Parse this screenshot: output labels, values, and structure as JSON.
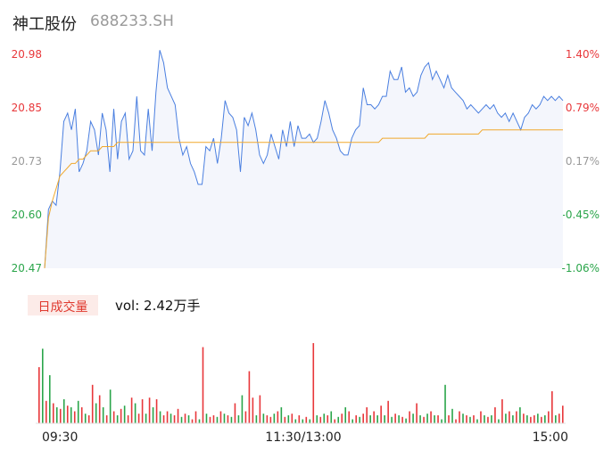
{
  "header": {
    "name": "神工股份",
    "code": "688233.SH"
  },
  "colors": {
    "price_line": "#4a7fe0",
    "avg_line": "#f0a82c",
    "area_fill": "#f4f6fc",
    "up": "#e8373a",
    "down": "#2aa54a",
    "neutral_label": "#9a9a9a"
  },
  "chart_data": {
    "type": "line",
    "y_price_ticks": [
      "20.98",
      "20.85",
      "20.73",
      "20.60",
      "20.47"
    ],
    "y_pct_ticks": [
      "1.40%",
      "0.79%",
      "0.17%",
      "-0.45%",
      "-1.06%"
    ],
    "ylim": [
      20.47,
      20.98
    ],
    "prev_close": 20.7,
    "x_ticks": [
      "09:30",
      "11:30/13:00",
      "15:00"
    ],
    "series": [
      {
        "values": [
          20.47,
          20.61,
          20.63,
          20.62,
          20.7,
          20.82,
          20.84,
          20.8,
          20.85,
          20.7,
          20.72,
          20.75,
          20.82,
          20.8,
          20.74,
          20.84,
          20.8,
          20.7,
          20.85,
          20.73,
          20.82,
          20.84,
          20.73,
          20.75,
          20.88,
          20.75,
          20.74,
          20.85,
          20.75,
          20.89,
          20.99,
          20.96,
          20.9,
          20.88,
          20.86,
          20.78,
          20.74,
          20.76,
          20.72,
          20.7,
          20.67,
          20.67,
          20.76,
          20.75,
          20.78,
          20.72,
          20.78,
          20.87,
          20.84,
          20.83,
          20.8,
          20.7,
          20.83,
          20.81,
          20.84,
          20.8,
          20.74,
          20.72,
          20.74,
          20.79,
          20.76,
          20.73,
          20.8,
          20.76,
          20.82,
          20.76,
          20.81,
          20.78,
          20.78,
          20.79,
          20.77,
          20.78,
          20.82,
          20.87,
          20.84,
          20.8,
          20.78,
          20.75,
          20.74,
          20.74,
          20.78,
          20.8,
          20.81,
          20.9,
          20.86,
          20.86,
          20.85,
          20.86,
          20.88,
          20.88,
          20.94,
          20.92,
          20.92,
          20.95,
          20.89,
          20.9,
          20.88,
          20.89,
          20.93,
          20.95,
          20.96,
          20.92,
          20.94,
          20.92,
          20.9,
          20.93,
          20.9,
          20.89,
          20.88,
          20.87,
          20.85,
          20.86,
          20.85,
          20.84,
          20.85,
          20.86,
          20.85,
          20.86,
          20.84,
          20.83,
          20.84,
          20.82,
          20.84,
          20.82,
          20.8,
          20.83,
          20.84,
          20.86,
          20.85,
          20.86,
          20.88,
          20.87,
          20.88,
          20.87,
          20.88,
          20.87
        ]
      },
      {
        "values": [
          20.47,
          20.59,
          20.63,
          20.66,
          20.69,
          20.7,
          20.71,
          20.72,
          20.72,
          20.73,
          20.73,
          20.74,
          20.75,
          20.75,
          20.75,
          20.76,
          20.76,
          20.76,
          20.76,
          20.77,
          20.77,
          20.77,
          20.77,
          20.77,
          20.77,
          20.77,
          20.77,
          20.77,
          20.77,
          20.77,
          20.77,
          20.77,
          20.77,
          20.77,
          20.77,
          20.77,
          20.77,
          20.77,
          20.77,
          20.77,
          20.77,
          20.77,
          20.77,
          20.77,
          20.77,
          20.77,
          20.77,
          20.77,
          20.77,
          20.77,
          20.77,
          20.77,
          20.77,
          20.77,
          20.77,
          20.77,
          20.77,
          20.77,
          20.77,
          20.77,
          20.77,
          20.77,
          20.77,
          20.77,
          20.77,
          20.77,
          20.77,
          20.77,
          20.77,
          20.77,
          20.77,
          20.77,
          20.77,
          20.77,
          20.77,
          20.77,
          20.77,
          20.77,
          20.77,
          20.77,
          20.77,
          20.77,
          20.77,
          20.77,
          20.77,
          20.77,
          20.77,
          20.77,
          20.78,
          20.78,
          20.78,
          20.78,
          20.78,
          20.78,
          20.78,
          20.78,
          20.78,
          20.78,
          20.78,
          20.78,
          20.79,
          20.79,
          20.79,
          20.79,
          20.79,
          20.79,
          20.79,
          20.79,
          20.79,
          20.79,
          20.79,
          20.79,
          20.79,
          20.79,
          20.8,
          20.8,
          20.8,
          20.8,
          20.8,
          20.8,
          20.8,
          20.8,
          20.8,
          20.8,
          20.8,
          20.8,
          20.8,
          20.8,
          20.8,
          20.8,
          20.8,
          20.8,
          20.8,
          20.8,
          20.8,
          20.8
        ]
      }
    ],
    "volume": {
      "label": "日成交量",
      "value_text": "vol: 2.42万手",
      "bars": [
        [
          0.7,
          "up"
        ],
        [
          0.93,
          "down"
        ],
        [
          0.28,
          "up"
        ],
        [
          0.6,
          "down"
        ],
        [
          0.25,
          "up"
        ],
        [
          0.2,
          "down"
        ],
        [
          0.18,
          "up"
        ],
        [
          0.3,
          "down"
        ],
        [
          0.22,
          "up"
        ],
        [
          0.2,
          "down"
        ],
        [
          0.15,
          "up"
        ],
        [
          0.28,
          "down"
        ],
        [
          0.2,
          "up"
        ],
        [
          0.12,
          "down"
        ],
        [
          0.1,
          "up"
        ],
        [
          0.48,
          "up"
        ],
        [
          0.25,
          "down"
        ],
        [
          0.35,
          "up"
        ],
        [
          0.2,
          "down"
        ],
        [
          0.1,
          "up"
        ],
        [
          0.42,
          "down"
        ],
        [
          0.15,
          "up"
        ],
        [
          0.1,
          "down"
        ],
        [
          0.18,
          "up"
        ],
        [
          0.22,
          "down"
        ],
        [
          0.1,
          "up"
        ],
        [
          0.32,
          "up"
        ],
        [
          0.25,
          "down"
        ],
        [
          0.12,
          "up"
        ],
        [
          0.3,
          "up"
        ],
        [
          0.12,
          "down"
        ],
        [
          0.32,
          "up"
        ],
        [
          0.2,
          "down"
        ],
        [
          0.3,
          "up"
        ],
        [
          0.15,
          "down"
        ],
        [
          0.1,
          "up"
        ],
        [
          0.15,
          "up"
        ],
        [
          0.12,
          "down"
        ],
        [
          0.1,
          "up"
        ],
        [
          0.18,
          "up"
        ],
        [
          0.08,
          "down"
        ],
        [
          0.12,
          "up"
        ],
        [
          0.1,
          "down"
        ],
        [
          0.05,
          "up"
        ],
        [
          0.15,
          "up"
        ],
        [
          0.05,
          "down"
        ],
        [
          0.95,
          "up"
        ],
        [
          0.12,
          "down"
        ],
        [
          0.08,
          "up"
        ],
        [
          0.1,
          "up"
        ],
        [
          0.08,
          "down"
        ],
        [
          0.15,
          "up"
        ],
        [
          0.12,
          "down"
        ],
        [
          0.1,
          "up"
        ],
        [
          0.08,
          "down"
        ],
        [
          0.25,
          "up"
        ],
        [
          0.1,
          "down"
        ],
        [
          0.35,
          "down"
        ],
        [
          0.15,
          "up"
        ],
        [
          0.65,
          "up"
        ],
        [
          0.32,
          "up"
        ],
        [
          0.1,
          "down"
        ],
        [
          0.35,
          "up"
        ],
        [
          0.12,
          "down"
        ],
        [
          0.1,
          "up"
        ],
        [
          0.08,
          "up"
        ],
        [
          0.12,
          "down"
        ],
        [
          0.15,
          "up"
        ],
        [
          0.2,
          "down"
        ],
        [
          0.08,
          "up"
        ],
        [
          0.1,
          "down"
        ],
        [
          0.12,
          "up"
        ],
        [
          0.05,
          "down"
        ],
        [
          0.1,
          "up"
        ],
        [
          0.05,
          "down"
        ],
        [
          0.08,
          "up"
        ],
        [
          0.05,
          "down"
        ],
        [
          1.0,
          "up"
        ],
        [
          0.1,
          "down"
        ],
        [
          0.08,
          "up"
        ],
        [
          0.12,
          "down"
        ],
        [
          0.1,
          "up"
        ],
        [
          0.15,
          "down"
        ],
        [
          0.05,
          "up"
        ],
        [
          0.08,
          "down"
        ],
        [
          0.12,
          "up"
        ],
        [
          0.2,
          "down"
        ],
        [
          0.15,
          "up"
        ],
        [
          0.05,
          "down"
        ],
        [
          0.1,
          "up"
        ],
        [
          0.08,
          "down"
        ],
        [
          0.12,
          "up"
        ],
        [
          0.2,
          "up"
        ],
        [
          0.1,
          "down"
        ],
        [
          0.15,
          "up"
        ],
        [
          0.1,
          "down"
        ],
        [
          0.22,
          "up"
        ],
        [
          0.1,
          "down"
        ],
        [
          0.28,
          "up"
        ],
        [
          0.08,
          "down"
        ],
        [
          0.12,
          "up"
        ],
        [
          0.1,
          "down"
        ],
        [
          0.08,
          "up"
        ],
        [
          0.06,
          "down"
        ],
        [
          0.15,
          "up"
        ],
        [
          0.12,
          "down"
        ],
        [
          0.25,
          "up"
        ],
        [
          0.1,
          "down"
        ],
        [
          0.08,
          "up"
        ],
        [
          0.12,
          "down"
        ],
        [
          0.15,
          "up"
        ],
        [
          0.1,
          "down"
        ],
        [
          0.1,
          "up"
        ],
        [
          0.05,
          "down"
        ],
        [
          0.48,
          "down"
        ],
        [
          0.1,
          "up"
        ],
        [
          0.18,
          "down"
        ],
        [
          0.05,
          "up"
        ],
        [
          0.15,
          "up"
        ],
        [
          0.12,
          "down"
        ],
        [
          0.1,
          "up"
        ],
        [
          0.08,
          "down"
        ],
        [
          0.1,
          "up"
        ],
        [
          0.05,
          "down"
        ],
        [
          0.15,
          "up"
        ],
        [
          0.1,
          "down"
        ],
        [
          0.08,
          "up"
        ],
        [
          0.1,
          "down"
        ],
        [
          0.2,
          "up"
        ],
        [
          0.05,
          "down"
        ],
        [
          0.3,
          "up"
        ],
        [
          0.12,
          "down"
        ],
        [
          0.15,
          "up"
        ],
        [
          0.1,
          "down"
        ],
        [
          0.15,
          "up"
        ],
        [
          0.2,
          "down"
        ],
        [
          0.12,
          "up"
        ],
        [
          0.1,
          "down"
        ],
        [
          0.08,
          "up"
        ],
        [
          0.1,
          "up"
        ],
        [
          0.12,
          "down"
        ],
        [
          0.08,
          "up"
        ],
        [
          0.1,
          "down"
        ],
        [
          0.15,
          "up"
        ],
        [
          0.4,
          "up"
        ],
        [
          0.1,
          "down"
        ],
        [
          0.12,
          "up"
        ],
        [
          0.22,
          "up"
        ]
      ]
    }
  }
}
